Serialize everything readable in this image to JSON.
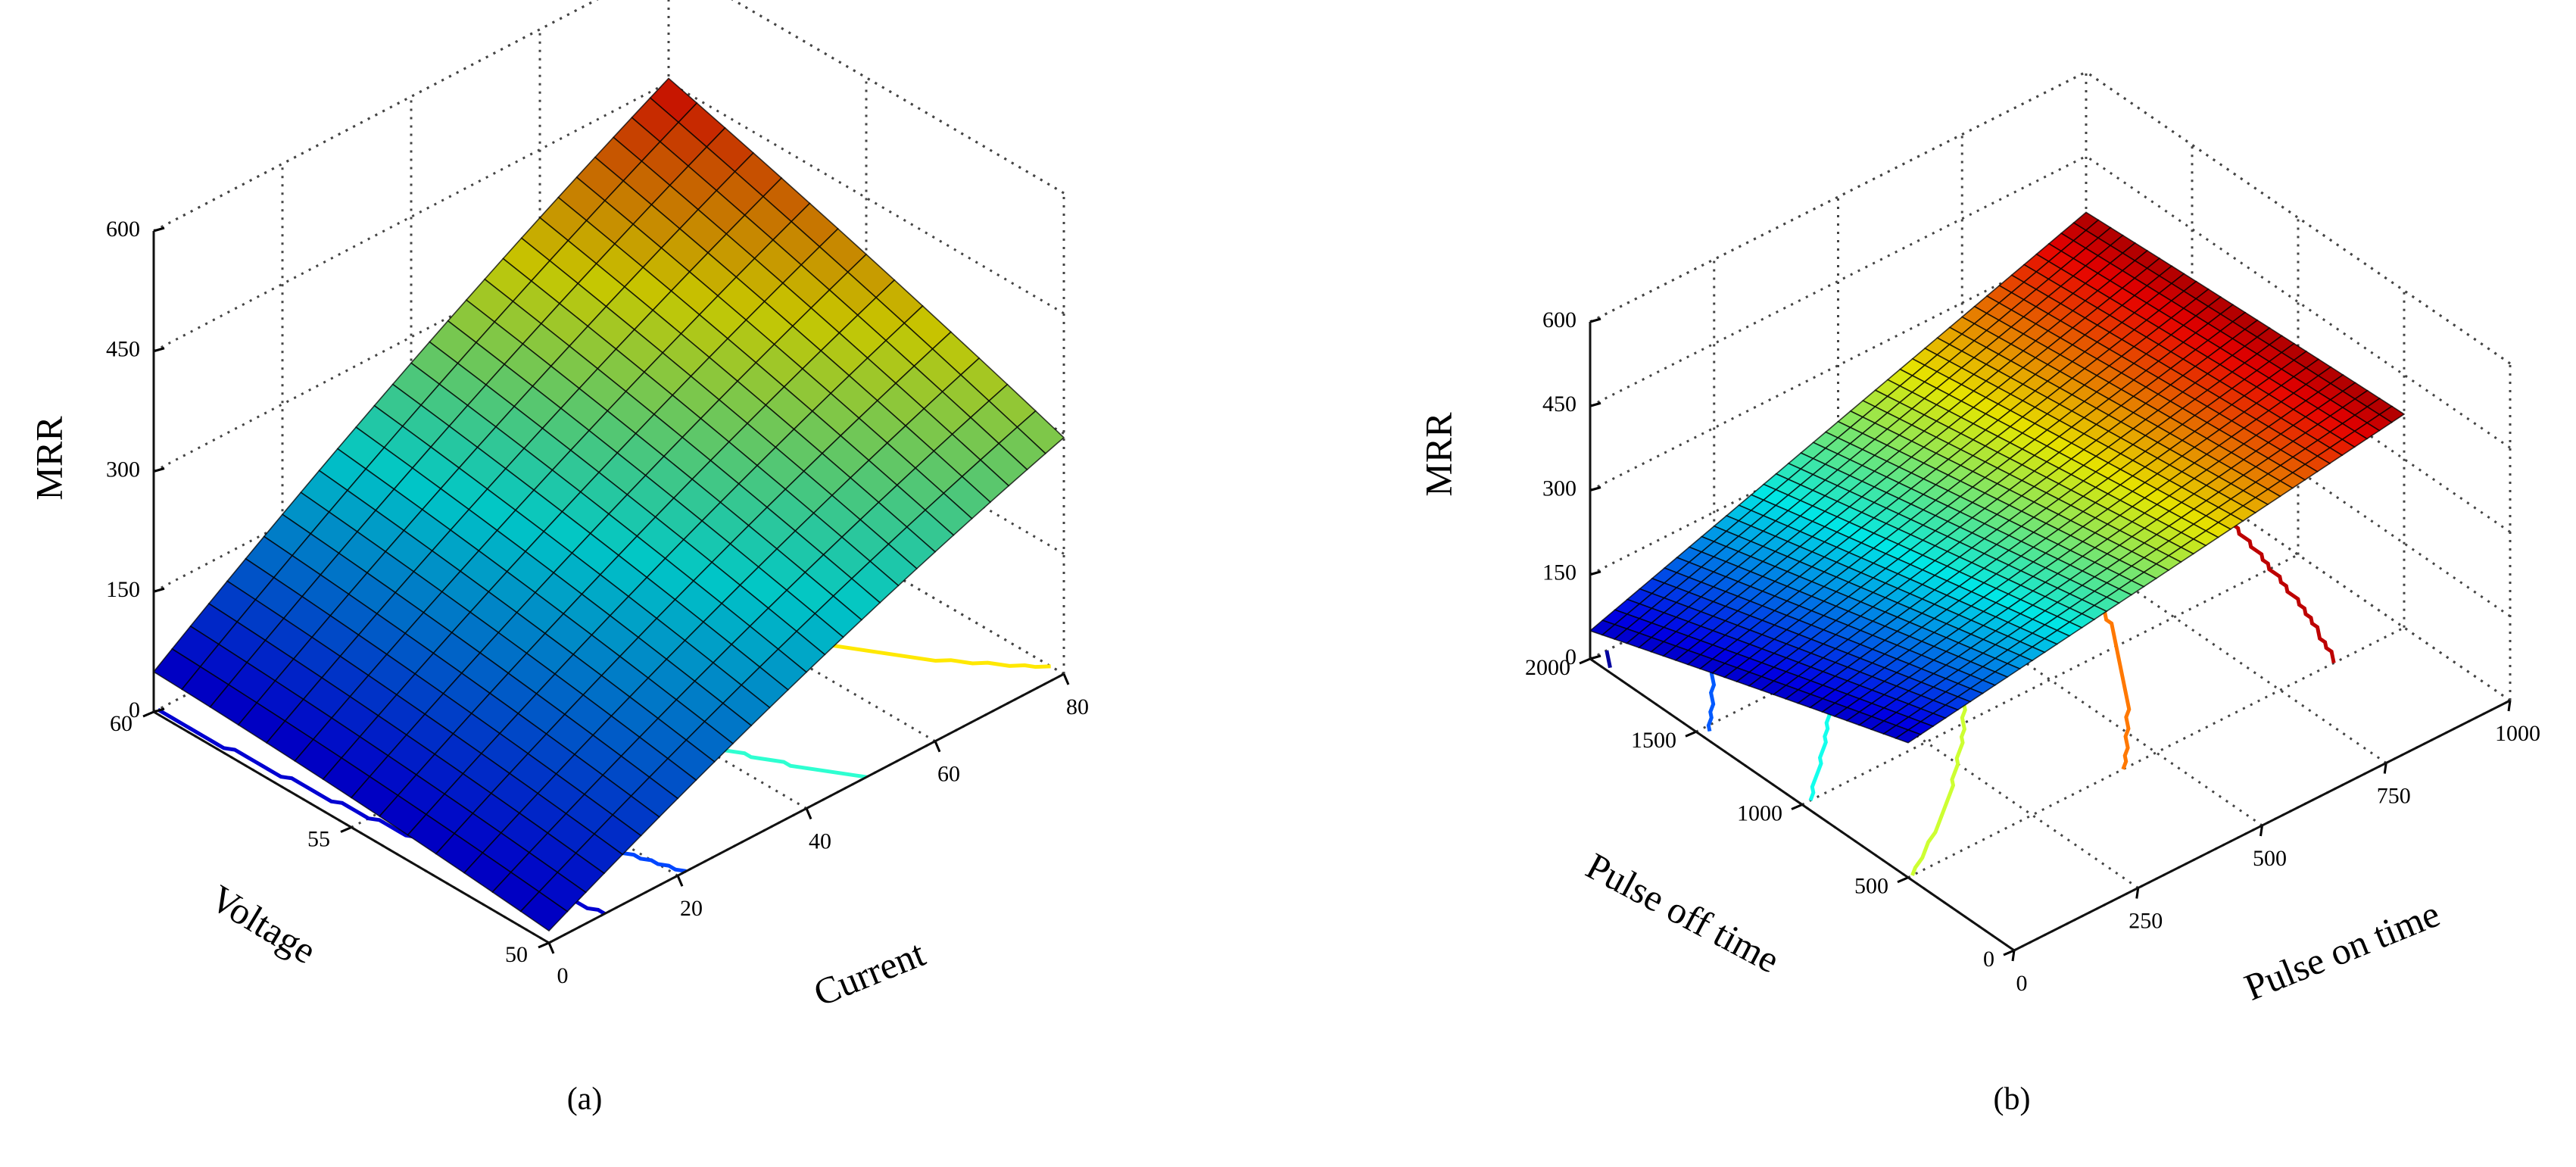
{
  "chart_data": [
    {
      "type": "surface3d",
      "panel_label": "(a)",
      "xlabel": "Current",
      "ylabel": "Voltage",
      "zlabel": "MRR",
      "xlim": [
        0,
        80
      ],
      "ylim": [
        50,
        60
      ],
      "zlim": [
        0,
        600
      ],
      "xticks": [
        0,
        20,
        40,
        60,
        80
      ],
      "yticks": [
        50,
        55,
        60
      ],
      "zticks": [
        0,
        150,
        300,
        450,
        600
      ],
      "grid": true,
      "colormap": "jet",
      "surface_corners": [
        {
          "x": 0,
          "y": 60,
          "z": 50
        },
        {
          "x": 0,
          "y": 50,
          "z": 15
        },
        {
          "x": 80,
          "y": 50,
          "z": 295
        },
        {
          "x": 80,
          "y": 60,
          "z": 455
        }
      ],
      "contour_levels": [
        50,
        100,
        200,
        300,
        400,
        500
      ]
    },
    {
      "type": "surface3d",
      "panel_label": "(b)",
      "xlabel": "Pulse on time",
      "ylabel": "Pulse off time",
      "zlabel": "MRR",
      "xlim": [
        0,
        1000
      ],
      "ylim": [
        0,
        2000
      ],
      "zlim": [
        0,
        600
      ],
      "xticks": [
        0,
        250,
        500,
        750,
        1000
      ],
      "yticks": [
        0,
        500,
        1000,
        1500,
        2000
      ],
      "zticks": [
        0,
        150,
        300,
        450,
        600
      ],
      "grid": true,
      "colormap": "jet",
      "surface_corners": [
        {
          "x": 0,
          "y": 2000,
          "z": 50
        },
        {
          "x": 0,
          "y": 500,
          "z": 240
        },
        {
          "x": 1000,
          "y": 500,
          "z": 380
        },
        {
          "x": 1000,
          "y": 2000,
          "z": 350
        }
      ],
      "contour_levels": [
        60,
        120,
        180,
        240,
        300,
        360
      ]
    }
  ]
}
